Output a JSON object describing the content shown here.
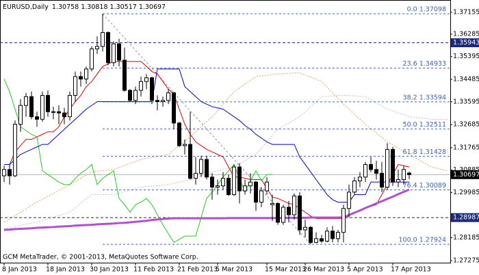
{
  "chart_data": {
    "type": "candlestick",
    "symbol": "EURUSD,Daily",
    "watermark": "GCM MetaTrader, © 2001-2013, MetaQuotes Software Corp.",
    "categories": [
      "8 Jan 2013",
      null,
      null,
      null,
      null,
      null,
      null,
      null,
      "18 Jan 2013",
      null,
      null,
      null,
      null,
      null,
      null,
      null,
      "30 Jan 2013",
      null,
      null,
      null,
      null,
      null,
      null,
      null,
      "11 Feb 2013",
      null,
      null,
      null,
      null,
      null,
      null,
      null,
      "21 Feb 2013",
      null,
      null,
      null,
      null,
      null,
      null,
      "5 Mar 2013",
      null,
      null,
      null,
      null,
      null,
      null,
      null,
      null,
      "15 Mar 2013",
      null,
      null,
      null,
      null,
      null,
      null,
      "26 Mar 2013",
      null,
      null,
      null,
      null,
      null,
      null,
      null,
      "5 Apr 2013",
      null,
      null,
      null,
      null,
      null,
      null,
      null,
      "17 Apr 2013",
      null,
      null,
      null,
      null,
      null,
      null,
      null,
      null,
      null,
      null
    ],
    "open": [
      1.3065,
      1.309,
      1.3065,
      1.327,
      1.3345,
      1.338,
      1.33,
      1.329,
      1.3385,
      1.332,
      1.332,
      1.3315,
      1.33,
      1.3385,
      1.346,
      1.345,
      1.349,
      1.357,
      1.358,
      1.3635,
      1.3515,
      1.359,
      1.3525,
      1.3405,
      1.3365,
      1.3405,
      1.344,
      1.3455,
      1.3365,
      1.336,
      1.3365,
      1.3395,
      1.3275,
      1.3185,
      1.319,
      1.3055,
      1.3075,
      1.313,
      1.306,
      1.302,
      1.3025,
      1.3055,
      1.299,
      1.31,
      1.3005,
      1.3025,
      1.304,
      1.296,
      1.3005,
      1.295,
      1.2955,
      1.288,
      1.294,
      1.291,
      1.2985,
      1.285,
      1.286,
      1.28,
      1.2815,
      1.2805,
      1.2845,
      1.2815,
      1.284,
      1.2935,
      1.3,
      1.3045,
      1.306,
      1.311,
      1.309,
      1.3075,
      1.302,
      1.317,
      1.304,
      1.305,
      1.30758,
      null,
      null,
      null,
      null,
      null,
      null,
      null
    ],
    "high": [
      1.3105,
      1.311,
      1.3285,
      1.337,
      1.3395,
      1.34,
      1.332,
      1.34,
      1.3405,
      1.334,
      1.3345,
      1.3335,
      1.34,
      1.348,
      1.348,
      1.35,
      1.358,
      1.362,
      1.37098,
      1.364,
      1.36,
      1.361,
      1.3575,
      1.341,
      1.342,
      1.346,
      1.347,
      1.346,
      1.3385,
      1.338,
      1.341,
      1.34,
      1.328,
      1.321,
      1.332,
      1.314,
      1.3145,
      1.3145,
      1.3075,
      1.305,
      1.308,
      1.307,
      1.311,
      1.3115,
      1.305,
      1.3075,
      1.3045,
      1.302,
      1.306,
      1.299,
      1.296,
      1.295,
      1.2965,
      1.2995,
      1.3,
      1.289,
      1.2865,
      1.284,
      1.283,
      1.286,
      1.2865,
      1.285,
      1.295,
      1.303,
      1.306,
      1.308,
      1.312,
      1.314,
      1.3125,
      1.312,
      1.3195,
      1.318,
      1.309,
      1.3105,
      1.30818,
      null,
      null,
      null,
      null,
      null,
      null,
      null
    ],
    "low": [
      1.304,
      1.303,
      1.306,
      1.324,
      1.33,
      1.329,
      1.326,
      1.328,
      1.33,
      1.329,
      1.327,
      1.327,
      1.3285,
      1.336,
      1.342,
      1.343,
      1.348,
      1.355,
      1.356,
      1.3505,
      1.35,
      1.35,
      1.34,
      1.336,
      1.335,
      1.338,
      1.341,
      1.335,
      1.3325,
      1.334,
      1.335,
      1.325,
      1.318,
      1.315,
      1.305,
      1.303,
      1.306,
      1.305,
      1.297,
      1.299,
      1.301,
      1.2985,
      1.2985,
      1.2955,
      1.299,
      1.2995,
      1.2925,
      1.294,
      1.299,
      1.2885,
      1.287,
      1.287,
      1.288,
      1.289,
      1.283,
      1.282,
      1.27924,
      1.2797,
      1.2798,
      1.28,
      1.28,
      1.28,
      1.28,
      1.29,
      1.299,
      1.302,
      1.304,
      1.308,
      1.305,
      1.3,
      1.301,
      1.3025,
      1.302,
      1.303,
      1.30517,
      null,
      null,
      null,
      null,
      null,
      null,
      null
    ],
    "close": [
      1.309,
      1.3065,
      1.327,
      1.3345,
      1.338,
      1.33,
      1.329,
      1.3385,
      1.332,
      1.332,
      1.3315,
      1.33,
      1.3385,
      1.346,
      1.345,
      1.349,
      1.357,
      1.358,
      1.3635,
      1.3515,
      1.359,
      1.3525,
      1.3405,
      1.3365,
      1.3405,
      1.344,
      1.3455,
      1.3365,
      1.336,
      1.3365,
      1.3395,
      1.3275,
      1.3185,
      1.319,
      1.3055,
      1.3075,
      1.313,
      1.306,
      1.302,
      1.3025,
      1.3055,
      1.299,
      1.31,
      1.3005,
      1.3025,
      1.304,
      1.296,
      1.3005,
      1.304,
      1.2955,
      1.288,
      1.294,
      1.291,
      1.2985,
      1.285,
      1.286,
      1.28,
      1.2815,
      1.2805,
      1.2845,
      1.2815,
      1.284,
      1.2935,
      1.3,
      1.3045,
      1.306,
      1.311,
      1.309,
      1.3075,
      1.302,
      1.317,
      1.304,
      1.305,
      1.309,
      1.30697,
      null,
      null,
      null,
      null,
      null,
      null,
      null
    ],
    "up_color": "#ffffff",
    "down_color": "#000000",
    "candle_outline": "#000000",
    "series": [
      {
        "color": "#e00000",
        "values": [
          1.311,
          1.311,
          1.316,
          1.3185,
          1.321,
          1.321,
          1.322,
          1.323,
          1.324,
          1.324,
          1.326,
          1.33,
          1.333,
          1.336,
          1.3385,
          1.342,
          1.344,
          1.347,
          1.35,
          1.351,
          1.352,
          1.352,
          1.352,
          1.352,
          1.352,
          1.352,
          1.35,
          1.348,
          1.347,
          1.344,
          1.341,
          1.339,
          1.333,
          1.327,
          1.323,
          1.32,
          1.3185,
          1.317,
          1.316,
          1.315,
          1.314,
          1.31,
          1.306,
          1.306,
          1.3055,
          1.305,
          1.305,
          1.305,
          1.3015,
          1.298,
          1.2975,
          1.2965,
          1.2955,
          1.295,
          1.2935,
          1.292,
          1.2905,
          1.2895,
          1.2895,
          1.2895,
          1.2895,
          1.2895,
          1.2895,
          1.2905,
          1.292,
          1.2928,
          1.2935,
          1.2943,
          1.295,
          1.299,
          1.303,
          1.307,
          1.311,
          1.3105,
          1.31,
          null,
          null,
          null,
          null,
          null,
          null,
          null
        ]
      },
      {
        "color": "#0000c0",
        "values": [
          1.311,
          1.311,
          1.313,
          1.315,
          1.316,
          1.317,
          1.318,
          1.319,
          1.319,
          1.321,
          1.323,
          1.325,
          1.327,
          1.329,
          1.331,
          1.333,
          1.3345,
          1.336,
          1.336,
          1.336,
          1.336,
          1.336,
          1.336,
          1.336,
          1.336,
          1.336,
          1.336,
          1.336,
          1.349,
          1.349,
          1.349,
          1.349,
          1.349,
          1.342,
          1.34,
          1.338,
          1.336,
          1.335,
          1.334,
          1.3335,
          1.333,
          1.3315,
          1.33,
          1.3285,
          1.3265,
          1.325,
          1.323,
          1.3215,
          1.32,
          1.319,
          1.319,
          1.319,
          1.319,
          1.319,
          1.314,
          1.311,
          1.308,
          1.305,
          1.302,
          1.299,
          1.297,
          1.296,
          1.296,
          1.296,
          1.299,
          1.299,
          1.299,
          1.304,
          1.304,
          1.304,
          1.304,
          1.304,
          1.304,
          1.304,
          1.304,
          null,
          null,
          null,
          null,
          null,
          null,
          null
        ]
      },
      {
        "color": "#22cc22",
        "values": [
          1.345,
          1.34,
          1.333,
          1.326,
          1.3245,
          1.323,
          1.322,
          1.3085,
          1.307,
          1.3055,
          1.304,
          1.303,
          1.303,
          1.3055,
          1.3075,
          1.309,
          1.311,
          1.303,
          1.3055,
          1.307,
          1.3085,
          1.2975,
          1.295,
          1.292,
          1.295,
          1.296,
          1.2975,
          1.295,
          1.291,
          1.287,
          1.2835,
          1.28,
          1.2812,
          1.2825,
          1.2825,
          1.2825,
          1.29,
          1.2975,
          1.3,
          1.303,
          1.306,
          1.3085,
          1.311,
          1.3055,
          1.3,
          1.3045,
          1.3085,
          1.3045,
          1.307,
          1.307,
          null,
          null,
          null,
          null,
          null,
          null,
          null,
          null,
          null,
          null,
          null,
          null,
          null,
          null,
          null,
          null,
          null,
          null,
          null,
          null,
          null,
          null,
          null,
          null,
          null,
          null,
          null,
          null,
          null,
          null,
          null,
          null
        ]
      },
      {
        "color": "#b050d0",
        "values": [
          1.285,
          1.2851,
          1.2853,
          1.2854,
          1.2855,
          1.2856,
          1.2858,
          1.2859,
          1.286,
          1.2861,
          1.2863,
          1.2864,
          1.2865,
          1.2867,
          1.2868,
          1.2869,
          1.287,
          1.2872,
          1.2873,
          1.2874,
          1.2875,
          1.2877,
          1.2878,
          1.288,
          1.2882,
          1.2884,
          1.2886,
          1.2889,
          1.2891,
          1.2893,
          1.2895,
          1.2896,
          1.2896,
          1.2896,
          1.2896,
          1.2896,
          1.2896,
          1.2896,
          1.2896,
          1.2896,
          1.2896,
          1.2897,
          1.2897,
          1.2897,
          1.2897,
          1.2897,
          1.2897,
          1.2897,
          1.2897,
          1.2897,
          1.2897,
          1.2898,
          1.2898,
          1.2898,
          1.2898,
          1.2898,
          1.2899,
          1.2899,
          1.2899,
          1.2899,
          1.2899,
          1.2899,
          1.29,
          1.2909,
          1.2918,
          1.2927,
          1.2937,
          1.2946,
          1.2955,
          1.2964,
          1.2973,
          1.2982,
          1.2992,
          1.3001,
          1.301,
          null,
          null,
          null,
          null,
          null,
          null,
          null
        ]
      }
    ],
    "cloud": {
      "up_color": "#e8a060",
      "down_color": "#c8b8c8",
      "span_a": [
        1.288,
        1.2893,
        1.2907,
        1.292,
        1.2933,
        1.2947,
        1.296,
        1.2972,
        1.2983,
        1.2995,
        1.3007,
        1.3018,
        1.303,
        1.3042,
        1.3055,
        1.3068,
        1.308,
        1.3083,
        1.3085,
        1.3088,
        1.309,
        1.3098,
        1.3106,
        1.3114,
        1.3122,
        1.313,
        1.3134,
        1.3138,
        1.3142,
        1.3146,
        1.315,
        1.3168,
        1.3185,
        1.3203,
        1.322,
        1.324,
        1.326,
        1.328,
        1.33,
        1.3325,
        1.335,
        1.3375,
        1.34,
        1.3415,
        1.343,
        1.3445,
        1.346,
        1.3463,
        1.3465,
        1.3468,
        1.347,
        1.3471,
        1.3473,
        1.3474,
        1.3475,
        1.3466,
        1.3458,
        1.3449,
        1.344,
        1.3418,
        1.3395,
        1.3373,
        1.335,
        1.333,
        1.331,
        1.329,
        1.327,
        1.3253,
        1.3235,
        1.3218,
        1.32,
        1.3188,
        1.3175,
        1.3163,
        1.315,
        1.3138,
        1.3125,
        1.3113,
        1.31,
        1.3095,
        1.309,
        1.3085
      ],
      "span_b": [
        1.2855,
        1.2859,
        1.2863,
        1.2868,
        1.2872,
        1.2876,
        1.288,
        1.2887,
        1.2893,
        1.29,
        1.2907,
        1.2913,
        1.292,
        1.2938,
        1.2955,
        1.2973,
        1.299,
        1.299,
        1.299,
        1.299,
        1.299,
        1.2996,
        1.3002,
        1.3008,
        1.3014,
        1.302,
        1.3022,
        1.3024,
        1.3026,
        1.3028,
        1.303,
        1.3035,
        1.304,
        1.3045,
        1.305,
        1.3058,
        1.3065,
        1.3073,
        1.308,
        1.3085,
        1.309,
        1.3095,
        1.31,
        1.3113,
        1.3125,
        1.3138,
        1.315,
        1.3175,
        1.32,
        1.3225,
        1.325,
        1.3263,
        1.3275,
        1.3288,
        1.33,
        1.332,
        1.334,
        1.336,
        1.338,
        1.3381,
        1.3383,
        1.3384,
        1.3385,
        1.3384,
        1.3383,
        1.3381,
        1.338,
        1.3368,
        1.3355,
        1.3343,
        1.333,
        1.3323,
        1.3315,
        1.3308,
        1.33,
        1.3298,
        1.3295,
        1.3293,
        1.329,
        1.329,
        1.329,
        1.329
      ]
    },
    "fib_color": "#4060b8",
    "fib_levels": [
      {
        "label": "0.0 1.37098",
        "value": 1.37098
      },
      {
        "label": "23.6 1.34933",
        "value": 1.34933
      },
      {
        "label": "38.2 1.33594",
        "value": 1.33594
      },
      {
        "label": "50.0 1.32511",
        "value": 1.32511
      },
      {
        "label": "61.8 1.31428",
        "value": 1.31428
      },
      {
        "label": "76.4 1.30089",
        "value": 1.30089
      },
      {
        "label": "100.0 1.27924",
        "value": 1.27924
      }
    ],
    "level_color": "#1c2a78",
    "levels": [
      1.35943,
      1.28987
    ],
    "ylim": [
      1.27193,
      1.37645
    ],
    "yticks": [
      1.37155,
      1.36285,
      1.35395,
      1.34485,
      1.33595,
      1.32685,
      1.31765,
      1.30885,
      1.29985,
      1.28185,
      1.27275
    ]
  }
}
